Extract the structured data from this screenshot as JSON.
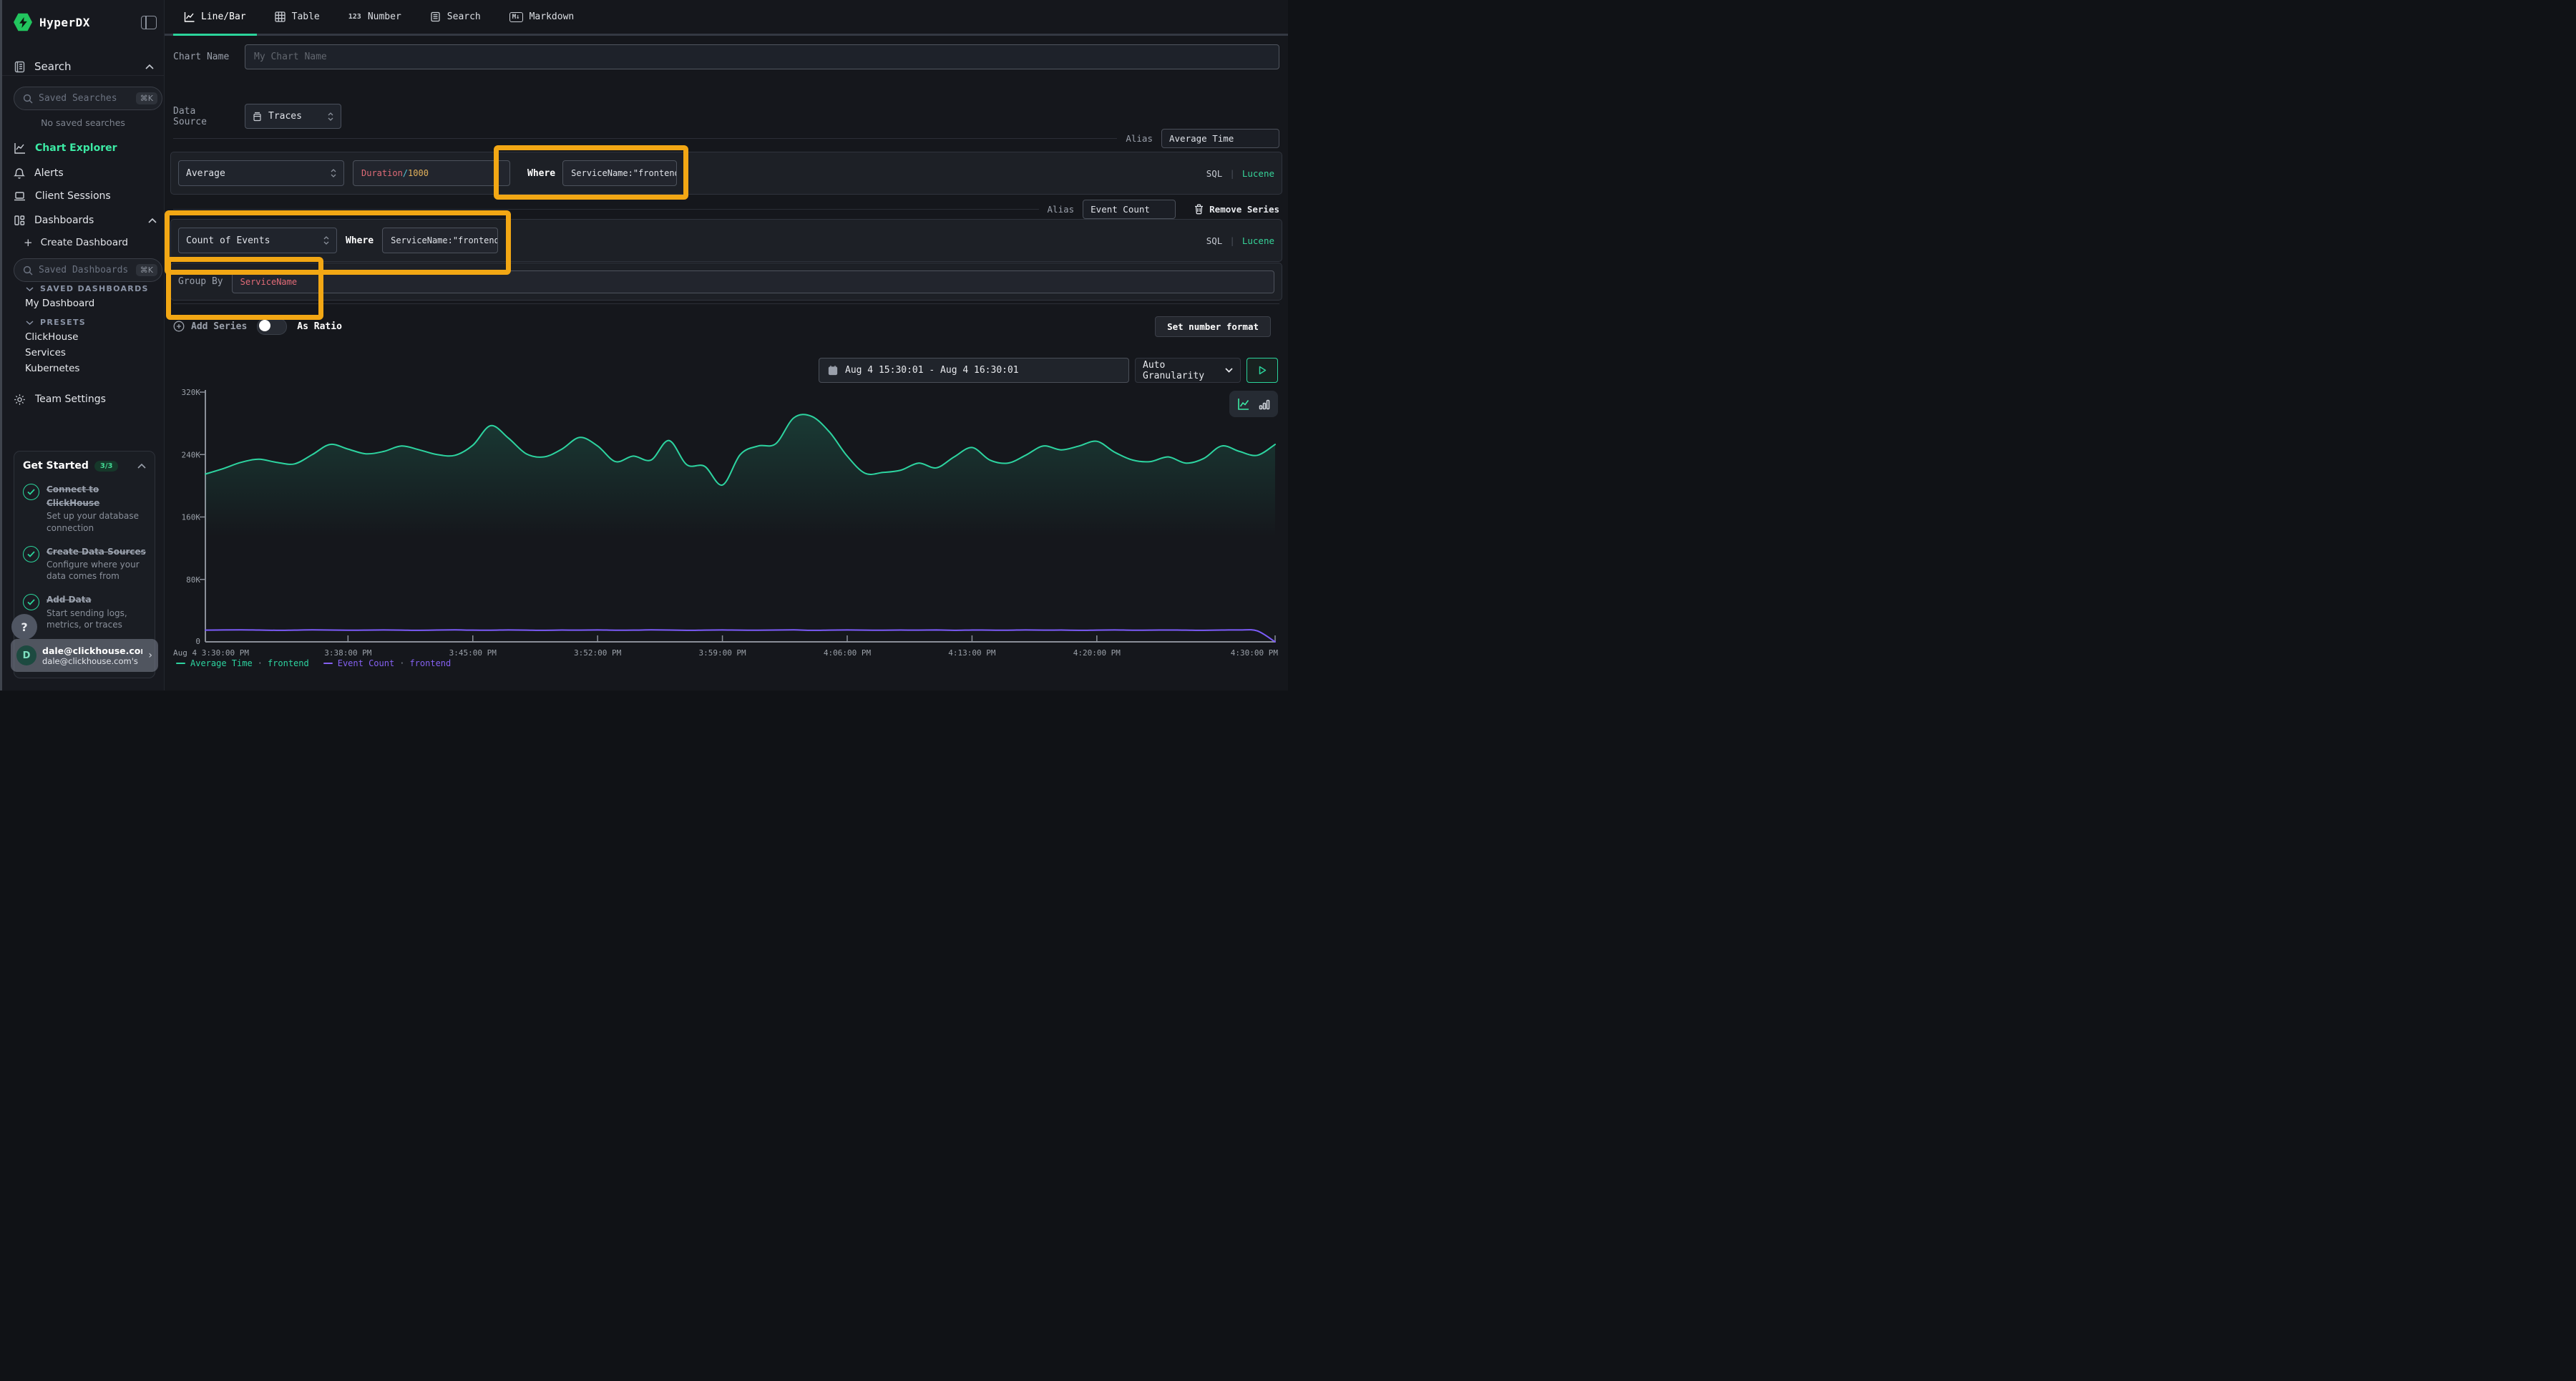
{
  "brand": {
    "name": "HyperDX"
  },
  "sidebar": {
    "search_section": {
      "label": "Search"
    },
    "saved_searches": {
      "placeholder": "Saved Searches",
      "shortcut": "⌘K",
      "empty": "No saved searches"
    },
    "nav": [
      {
        "label": "Chart Explorer",
        "active": true
      },
      {
        "label": "Alerts"
      },
      {
        "label": "Client Sessions"
      },
      {
        "label": "Dashboards"
      }
    ],
    "create_dashboard": {
      "icon": "+",
      "label": "Create Dashboard"
    },
    "saved_dashboards": {
      "placeholder": "Saved Dashboards",
      "shortcut": "⌘K"
    },
    "groups": [
      {
        "label": "SAVED DASHBOARDS",
        "items": [
          "My Dashboard"
        ]
      },
      {
        "label": "PRESETS",
        "items": [
          "ClickHouse",
          "Services",
          "Kubernetes"
        ]
      }
    ],
    "team_settings": {
      "label": "Team Settings"
    },
    "get_started": {
      "title": "Get Started",
      "badge": "3/3",
      "items": [
        {
          "title": "Connect to ClickHouse",
          "subtitle": "Set up your database connection"
        },
        {
          "title": "Create Data Sources",
          "subtitle": "Configure where your data comes from"
        },
        {
          "title": "Add Data",
          "subtitle": "Start sending logs, metrics, or traces"
        }
      ]
    },
    "help": "?",
    "user": {
      "initial": "D",
      "email": "dale@clickhouse.com",
      "team": "dale@clickhouse.com's"
    }
  },
  "tabs": [
    {
      "label": "Line/Bar",
      "active": true
    },
    {
      "label": "Table"
    },
    {
      "label": "Number",
      "icon_text": "123"
    },
    {
      "label": "Search"
    },
    {
      "label": "Markdown",
      "icon_text": "M↓"
    }
  ],
  "form": {
    "chart_name": {
      "label": "Chart Name",
      "placeholder": "My Chart Name"
    },
    "data_source": {
      "label": "Data Source",
      "value": "Traces"
    },
    "series": [
      {
        "aggregation": "Average",
        "field_tokens": {
          "base": "Duration",
          "operator": "/",
          "operand": "1000"
        },
        "where_label": "Where",
        "where_value": "ServiceName:\"frontend\"",
        "alias_label": "Alias",
        "alias_value": "Average Time",
        "sql": "SQL",
        "pipe": "|",
        "lucene": "Lucene"
      },
      {
        "aggregation": "Count of Events",
        "where_label": "Where",
        "where_value": "ServiceName:\"frontend\"",
        "alias_label": "Alias",
        "alias_value": "Event Count",
        "remove_label": "Remove Series",
        "sql": "SQL",
        "pipe": "|",
        "lucene": "Lucene"
      }
    ],
    "group_by": {
      "label": "Group By",
      "value": "ServiceName"
    },
    "add_series_label": "Add Series",
    "as_ratio_label": "As Ratio",
    "set_number_format_label": "Set number format"
  },
  "toolbar": {
    "date_range": "Aug 4 15:30:01 - Aug 4 16:30:01",
    "granularity": "Auto Granularity"
  },
  "annotations": {
    "highlight_color": "#f2a714"
  },
  "chart_data": {
    "type": "line",
    "title": "",
    "xlabel": "",
    "ylabel": "",
    "x_start": "Aug 4 3:30:00 PM",
    "x_end": "4:30:00 PM",
    "minutes_per_point": 1,
    "ylim": [
      0,
      320000
    ],
    "grid": false,
    "legend_position": "bottom",
    "x_ticks": [
      {
        "minute": 0,
        "label": "Aug 4 3:30:00 PM"
      },
      {
        "minute": 8,
        "label": "3:38:00 PM"
      },
      {
        "minute": 15,
        "label": "3:45:00 PM"
      },
      {
        "minute": 22,
        "label": "3:52:00 PM"
      },
      {
        "minute": 29,
        "label": "3:59:00 PM"
      },
      {
        "minute": 36,
        "label": "4:06:00 PM"
      },
      {
        "minute": 43,
        "label": "4:13:00 PM"
      },
      {
        "minute": 50,
        "label": "4:20:00 PM"
      },
      {
        "minute": 60,
        "label": "4:30:00 PM"
      }
    ],
    "y_ticks": [
      {
        "value": 0,
        "label": "0"
      },
      {
        "value": 80000,
        "label": "80K"
      },
      {
        "value": 160000,
        "label": "160K"
      },
      {
        "value": 240000,
        "label": "240K"
      },
      {
        "value": 320000,
        "label": "320K"
      }
    ],
    "series": [
      {
        "name": "Average Time · frontend",
        "color": "#2dd4a0",
        "fill": true,
        "values": [
          215000,
          222000,
          230000,
          234000,
          230000,
          228000,
          240000,
          253000,
          247000,
          241000,
          244000,
          251000,
          246000,
          240000,
          239000,
          252000,
          277000,
          261000,
          241000,
          237000,
          247000,
          262000,
          251000,
          231000,
          238000,
          233000,
          258000,
          227000,
          225000,
          201000,
          240000,
          251000,
          254000,
          287000,
          289000,
          269000,
          238000,
          216000,
          217000,
          220000,
          229000,
          223000,
          237000,
          249000,
          233000,
          229000,
          239000,
          251000,
          246000,
          251000,
          257000,
          243000,
          233000,
          231000,
          237000,
          229000,
          235000,
          251000,
          244000,
          239000,
          253000
        ]
      },
      {
        "name": "Event Count · frontend",
        "color": "#7c5cfa",
        "fill": false,
        "values": [
          15000,
          15200,
          15400,
          15100,
          14800,
          15000,
          15300,
          15100,
          14900,
          15000,
          15200,
          15000,
          14800,
          15100,
          15300,
          15000,
          14900,
          15200,
          15000,
          14800,
          15100,
          15000,
          15200,
          14900,
          15000,
          15300,
          15100,
          14800,
          15000,
          15200,
          15000,
          14900,
          15100,
          15300,
          14800,
          15000,
          15200,
          15000,
          14900,
          15100,
          15000,
          15200,
          14800,
          15100,
          15000,
          14900,
          15200,
          15000,
          15100,
          14800,
          15000,
          15200,
          14900,
          15000,
          15100,
          15000,
          14800,
          15100,
          15200,
          14000,
          0
        ]
      }
    ],
    "legend": [
      {
        "name": "Average Time",
        "dot": "·",
        "scope": "frontend",
        "color": "#2dd4a0"
      },
      {
        "name": "Event Count",
        "dot": "·",
        "scope": "frontend",
        "color": "#8561f2"
      }
    ]
  }
}
